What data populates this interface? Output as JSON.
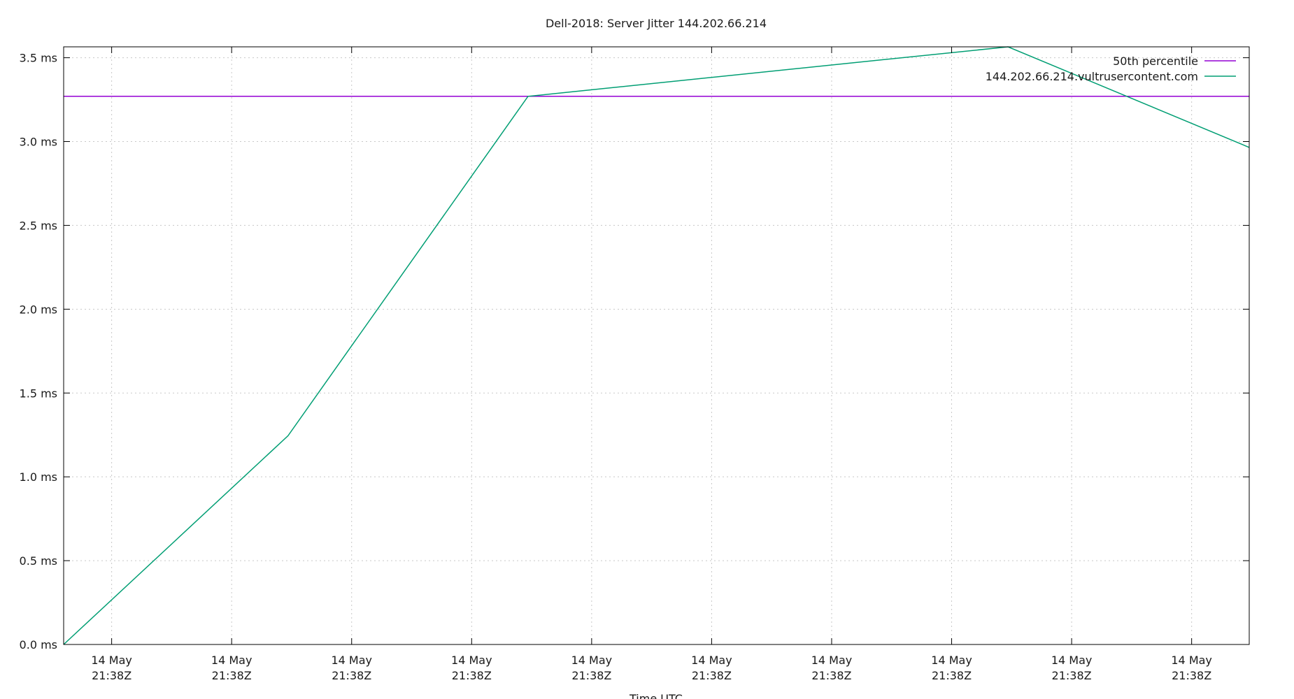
{
  "chart_data": {
    "type": "line",
    "title": "Dell-2018: Server Jitter 144.202.66.214",
    "xlabel": "Time UTC",
    "ylabel": "",
    "ylim": [
      0,
      3.565
    ],
    "xlim": [
      0,
      9.88
    ],
    "yticks": [
      {
        "value": 0.0,
        "label": "0.0 ms"
      },
      {
        "value": 0.5,
        "label": "0.5 ms"
      },
      {
        "value": 1.0,
        "label": "1.0 ms"
      },
      {
        "value": 1.5,
        "label": "1.5 ms"
      },
      {
        "value": 2.0,
        "label": "2.0 ms"
      },
      {
        "value": 2.5,
        "label": "2.5 ms"
      },
      {
        "value": 3.0,
        "label": "3.0 ms"
      },
      {
        "value": 3.5,
        "label": "3.5 ms"
      }
    ],
    "xticks": [
      {
        "value": 0.4,
        "line1": "14 May",
        "line2": "21:38Z"
      },
      {
        "value": 1.4,
        "line1": "14 May",
        "line2": "21:38Z"
      },
      {
        "value": 2.4,
        "line1": "14 May",
        "line2": "21:38Z"
      },
      {
        "value": 3.4,
        "line1": "14 May",
        "line2": "21:38Z"
      },
      {
        "value": 4.4,
        "line1": "14 May",
        "line2": "21:38Z"
      },
      {
        "value": 5.4,
        "line1": "14 May",
        "line2": "21:38Z"
      },
      {
        "value": 6.4,
        "line1": "14 May",
        "line2": "21:38Z"
      },
      {
        "value": 7.4,
        "line1": "14 May",
        "line2": "21:38Z"
      },
      {
        "value": 8.4,
        "line1": "14 May",
        "line2": "21:38Z"
      },
      {
        "value": 9.4,
        "line1": "14 May",
        "line2": "21:38Z"
      }
    ],
    "grid": true,
    "legend_position": "top-right",
    "series": [
      {
        "name": "50th percentile",
        "color": "#9400d3",
        "x": [
          0,
          9.88
        ],
        "y": [
          3.27,
          3.27
        ]
      },
      {
        "name": "144.202.66.214.vultrusercontent.com",
        "color": "#009e73",
        "x": [
          0,
          1.87,
          3.87,
          7.87,
          9.88
        ],
        "y": [
          0.0,
          1.245,
          3.27,
          3.565,
          2.965
        ]
      }
    ]
  }
}
